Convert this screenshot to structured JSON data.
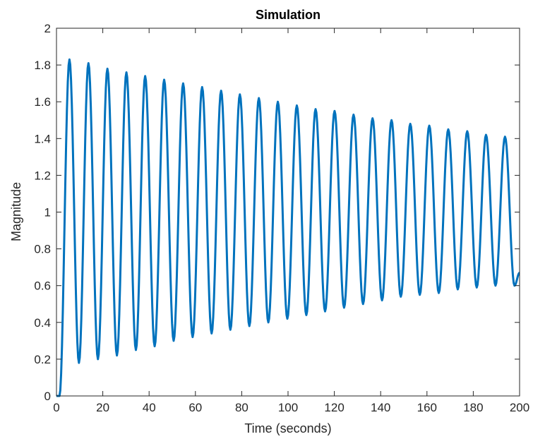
{
  "chart_data": {
    "type": "line",
    "title": "Simulation",
    "xlabel": "Time (seconds)",
    "ylabel": "Magnitude",
    "xlim": [
      0,
      200
    ],
    "ylim": [
      0,
      2
    ],
    "xticks": [
      0,
      20,
      40,
      60,
      80,
      100,
      120,
      140,
      160,
      180,
      200
    ],
    "yticks": [
      0,
      0.2,
      0.4,
      0.6,
      0.8,
      1,
      1.2,
      1.4,
      1.6,
      1.8,
      2
    ],
    "grid": false,
    "series": [
      {
        "color": "#0072BD",
        "x": [
          0,
          1.3,
          5.6,
          9.7,
          13.8,
          17.9,
          22.0,
          26.1,
          30.2,
          34.3,
          38.3,
          42.4,
          46.5,
          50.6,
          54.7,
          58.8,
          62.9,
          67.0,
          71.1,
          75.1,
          79.2,
          83.3,
          87.4,
          91.5,
          95.6,
          99.7,
          103.8,
          107.9,
          111.9,
          116.0,
          120.1,
          124.2,
          128.3,
          132.4,
          136.5,
          140.6,
          144.7,
          148.7,
          152.8,
          156.9,
          161.0,
          165.1,
          169.2,
          173.3,
          177.4,
          181.5,
          185.5,
          189.6,
          193.7,
          197.8,
          200
        ],
        "y": [
          0,
          0,
          1.83,
          0.18,
          1.81,
          0.2,
          1.78,
          0.22,
          1.76,
          0.25,
          1.74,
          0.27,
          1.72,
          0.3,
          1.7,
          0.32,
          1.68,
          0.34,
          1.66,
          0.36,
          1.64,
          0.38,
          1.62,
          0.4,
          1.6,
          0.42,
          1.58,
          0.44,
          1.56,
          0.46,
          1.55,
          0.48,
          1.53,
          0.5,
          1.51,
          0.52,
          1.5,
          0.54,
          1.48,
          0.55,
          1.47,
          0.56,
          1.45,
          0.58,
          1.44,
          0.59,
          1.42,
          0.6,
          1.41,
          0.6,
          0.67
        ]
      }
    ]
  }
}
